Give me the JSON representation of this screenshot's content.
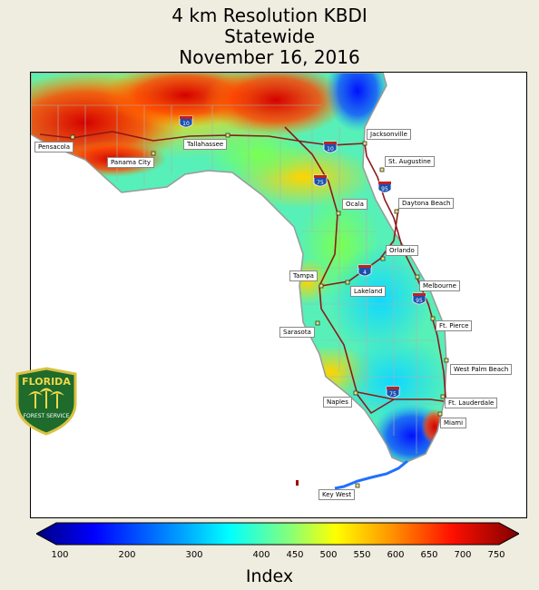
{
  "title": {
    "line1": "4 km Resolution KBDI",
    "line2": "Statewide",
    "line3": "November 16, 2016"
  },
  "legend": {
    "label": "Index",
    "ticks": [
      "100",
      "200",
      "300",
      "400",
      "450",
      "500",
      "550",
      "600",
      "650",
      "700",
      "750"
    ]
  },
  "cities": [
    {
      "id": "pensacola",
      "name": "Pensacola"
    },
    {
      "id": "panama-city",
      "name": "Panama City"
    },
    {
      "id": "tallahassee",
      "name": "Tallahassee"
    },
    {
      "id": "jacksonville",
      "name": "Jacksonville"
    },
    {
      "id": "st-augustine",
      "name": "St. Augustine"
    },
    {
      "id": "ocala",
      "name": "Ocala"
    },
    {
      "id": "daytona-beach",
      "name": "Daytona Beach"
    },
    {
      "id": "orlando",
      "name": "Orlando"
    },
    {
      "id": "tampa",
      "name": "Tampa"
    },
    {
      "id": "lakeland",
      "name": "Lakeland"
    },
    {
      "id": "melbourne",
      "name": "Melbourne"
    },
    {
      "id": "ft-pierce",
      "name": "Ft. Pierce"
    },
    {
      "id": "sarasota",
      "name": "Sarasota"
    },
    {
      "id": "west-palm-beach",
      "name": "West Palm Beach"
    },
    {
      "id": "naples",
      "name": "Naples"
    },
    {
      "id": "ft-lauderdale",
      "name": "Ft. Lauderdale"
    },
    {
      "id": "miami",
      "name": "Miami"
    },
    {
      "id": "key-west",
      "name": "Key West"
    }
  ],
  "interstates": [
    "10",
    "10",
    "75",
    "95",
    "4",
    "95",
    "75"
  ],
  "logo": {
    "line1": "FLORIDA",
    "line2": "FOREST SERVICE"
  },
  "colors": {
    "background": "#efece0",
    "highway": "#8b1a1a",
    "county_lines": "#9a9a9a"
  }
}
